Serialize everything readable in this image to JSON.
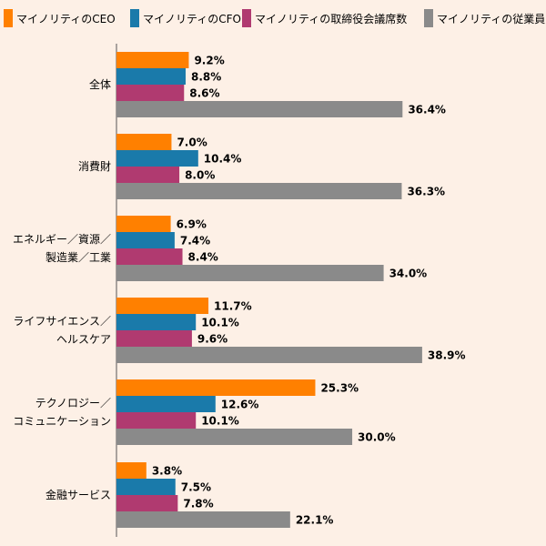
{
  "chart_data": {
    "type": "bar",
    "orientation": "horizontal",
    "legend_position": "top",
    "grid": false,
    "xlim": [
      0,
      40
    ],
    "categories": [
      [
        "全体"
      ],
      [
        "消費財"
      ],
      [
        "エネルギー／資源／",
        "製造業／工業"
      ],
      [
        "ライフサイエンス／",
        "ヘルスケア"
      ],
      [
        "テクノロジー／",
        "コミュニケーション"
      ],
      [
        "金融サービス"
      ]
    ],
    "series": [
      {
        "name": "マイノリティのCEO",
        "color": "#FF8000",
        "values": [
          9.2,
          7.0,
          6.9,
          11.7,
          25.3,
          3.8
        ],
        "labels": [
          "9.2%",
          "7.0%",
          "6.9%",
          "11.7%",
          "25.3%",
          "3.8%"
        ]
      },
      {
        "name": "マイノリティのCFO",
        "color": "#1A7AAA",
        "values": [
          8.8,
          10.4,
          7.4,
          10.1,
          12.6,
          7.5
        ],
        "labels": [
          "8.8%",
          "10.4%",
          "7.4%",
          "10.1%",
          "12.6%",
          "7.5%"
        ]
      },
      {
        "name": "マイノリティの取締役会議席数",
        "color": "#B03A70",
        "values": [
          8.6,
          8.0,
          8.4,
          9.6,
          10.1,
          7.8
        ],
        "labels": [
          "8.6%",
          "8.0%",
          "8.4%",
          "9.6%",
          "10.1%",
          "7.8%"
        ]
      },
      {
        "name": "マイノリティの従業員",
        "color": "#8A8A8A",
        "values": [
          36.4,
          36.3,
          34.0,
          38.9,
          30.0,
          22.1
        ],
        "labels": [
          "36.4%",
          "36.3%",
          "34.0%",
          "38.9%",
          "30.0%",
          "22.1%"
        ]
      }
    ]
  }
}
